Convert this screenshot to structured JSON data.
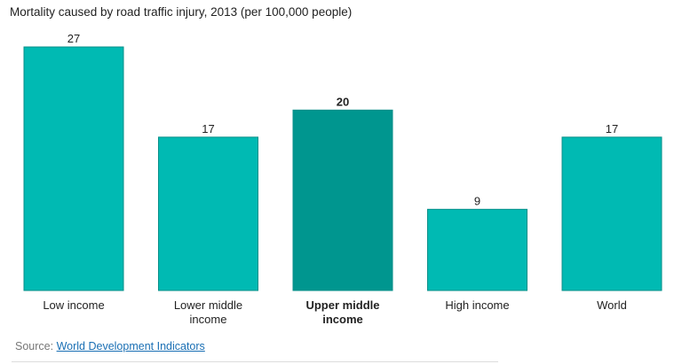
{
  "title": "Mortality caused by road traffic injury, 2013 (per 100,000 people)",
  "source": {
    "label": "Source:",
    "link_text": "World Development Indicators"
  },
  "colors": {
    "bar": "#00bab3",
    "highlight": "#00968f",
    "bar_border": "#078f89",
    "value_text": "#222222",
    "axis_text": "#222222"
  },
  "chart_data": {
    "type": "bar",
    "title": "Mortality caused by road traffic injury, 2013 (per 100,000 people)",
    "categories": [
      [
        "Low income"
      ],
      [
        "Lower middle",
        "income"
      ],
      [
        "Upper middle",
        "income"
      ],
      [
        "High income"
      ],
      [
        "World"
      ]
    ],
    "values": [
      27,
      17,
      20,
      9,
      17
    ],
    "highlight_index": 2,
    "xlabel": "",
    "ylabel": "",
    "ylim": [
      0,
      27
    ],
    "grid": false,
    "legend": "none"
  }
}
